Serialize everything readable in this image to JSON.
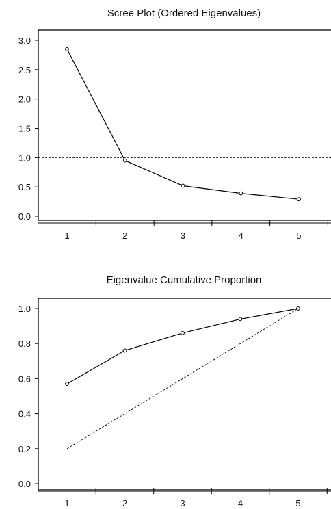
{
  "chart_data": [
    {
      "type": "line",
      "title": "Scree Plot (Ordered Eigenvalues)",
      "xlabel": "",
      "ylabel": "",
      "x": [
        1,
        2,
        3,
        4,
        5
      ],
      "x_ticks": [
        "1",
        "2",
        "3",
        "4",
        "5"
      ],
      "y_ticks": [
        "0.0",
        "0.5",
        "1.0",
        "1.5",
        "2.0",
        "2.5",
        "3.0"
      ],
      "ylim": [
        0,
        3
      ],
      "series": [
        {
          "values": [
            2.85,
            0.95,
            0.52,
            0.39,
            0.29
          ],
          "style": "solid",
          "markers": true
        }
      ],
      "reference_line": {
        "y": 1.0,
        "style": "dashed"
      },
      "grid": false
    },
    {
      "type": "line",
      "title": "Eigenvalue Cumulative Proportion",
      "xlabel": "",
      "ylabel": "",
      "x": [
        1,
        2,
        3,
        4,
        5
      ],
      "x_ticks": [
        "1",
        "2",
        "3",
        "4",
        "5"
      ],
      "y_ticks": [
        "0.0",
        "0.2",
        "0.4",
        "0.6",
        "0.8",
        "1.0"
      ],
      "ylim": [
        0,
        1
      ],
      "series": [
        {
          "values": [
            0.57,
            0.76,
            0.86,
            0.94,
            1.0
          ],
          "style": "solid",
          "markers": true
        },
        {
          "values": [
            0.2,
            0.4,
            0.6,
            0.8,
            1.0
          ],
          "style": "dashed",
          "markers": false
        }
      ],
      "grid": false
    }
  ],
  "colors": {
    "line": "#000000",
    "marker_fill": "#ffffff",
    "background": "#ffffff"
  }
}
